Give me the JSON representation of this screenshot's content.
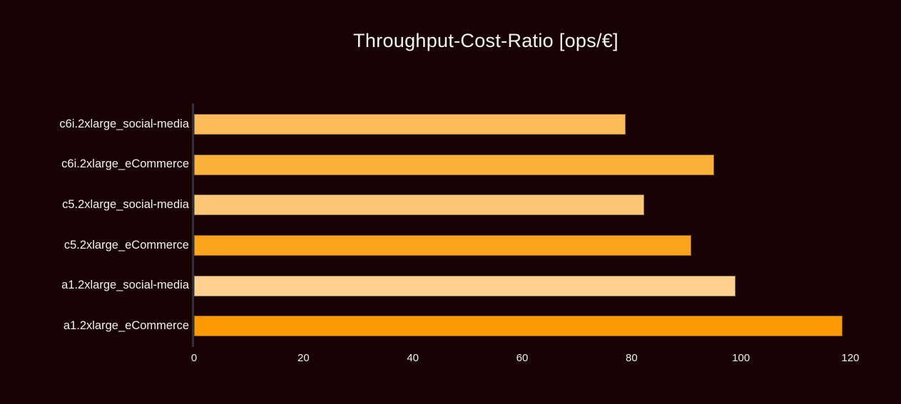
{
  "chart_data": {
    "type": "bar",
    "orientation": "horizontal",
    "title": "Throughput-Cost-Ratio [ops/€]",
    "categories": [
      "c6i.2xlarge_social-media",
      "c6i.2xlarge_eCommerce",
      "c5.2xlarge_social-media",
      "c5.2xlarge_eCommerce",
      "a1.2xlarge_social-media",
      "a1.2xlarge_eCommerce"
    ],
    "values": [
      78.9,
      95.1,
      82.3,
      90.9,
      99.0,
      118.6
    ],
    "bar_colors": [
      "#fcbc59",
      "#feb13a",
      "#fdc676",
      "#fda41f",
      "#ffd08f",
      "#fc9a03"
    ],
    "xlabel": "",
    "ylabel": "",
    "xlim": [
      0,
      126
    ],
    "x_ticks": [
      0,
      20,
      40,
      60,
      80,
      100,
      120
    ],
    "grid": false,
    "legend": false
  },
  "colors": {
    "background": "#180103",
    "axis_line": "#2a3140",
    "text": "#f2f2f2"
  }
}
